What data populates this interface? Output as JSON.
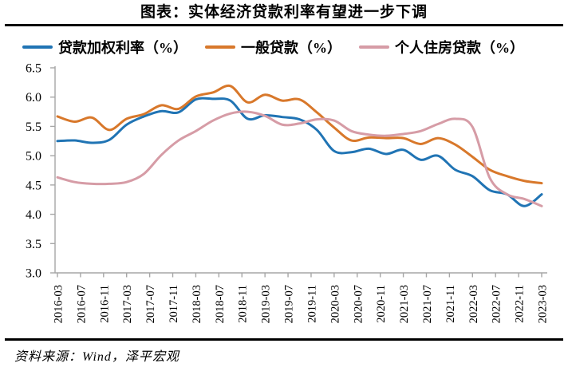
{
  "title": "图表：实体经济贷款利率有望进一步下调",
  "source_note": "资料来源：Wind，泽平宏观",
  "colors": {
    "series_blue": "#2074B4",
    "series_orange": "#D8782B",
    "series_pink": "#D69CA6",
    "axis": "#A6A6A6",
    "rule": "#000000",
    "text": "#000000"
  },
  "chart_data": {
    "type": "line",
    "title": "图表：实体经济贷款利率有望进一步下调",
    "xlabel": "",
    "ylabel": "",
    "ylim": [
      3.0,
      6.5
    ],
    "ytick_step": 0.5,
    "ytick_labels": [
      "6.5",
      "6.0",
      "5.5",
      "5.0",
      "4.5",
      "4.0",
      "3.5",
      "3.0"
    ],
    "xtick_labels": [
      "2016-03",
      "2016-07",
      "2016-11",
      "2017-03",
      "2017-07",
      "2017-11",
      "2018-03",
      "2018-07",
      "2018-11",
      "2019-03",
      "2019-07",
      "2019-11",
      "2020-03",
      "2020-07",
      "2020-11",
      "2021-03",
      "2021-07",
      "2021-11",
      "2022-03",
      "2022-07",
      "2022-11",
      "2023-03"
    ],
    "grid": false,
    "legend_position": "top-left",
    "x": [
      "2016-03",
      "2016-06",
      "2016-09",
      "2016-12",
      "2017-03",
      "2017-06",
      "2017-09",
      "2017-12",
      "2018-03",
      "2018-06",
      "2018-09",
      "2018-12",
      "2019-03",
      "2019-06",
      "2019-09",
      "2019-12",
      "2020-03",
      "2020-06",
      "2020-09",
      "2020-12",
      "2021-03",
      "2021-06",
      "2021-09",
      "2021-12",
      "2022-03",
      "2022-06",
      "2022-09",
      "2022-12",
      "2023-03"
    ],
    "series": [
      {
        "name": "贷款加权利率（%）",
        "color": "#2074B4",
        "values": [
          5.25,
          5.26,
          5.22,
          5.27,
          5.53,
          5.67,
          5.76,
          5.74,
          5.96,
          5.97,
          5.94,
          5.63,
          5.69,
          5.66,
          5.62,
          5.44,
          5.08,
          5.06,
          5.12,
          5.03,
          5.1,
          4.93,
          5.0,
          4.76,
          4.65,
          4.41,
          4.34,
          4.14,
          4.34
        ]
      },
      {
        "name": "一般贷款（%）",
        "color": "#D8782B",
        "values": [
          5.67,
          5.58,
          5.65,
          5.44,
          5.63,
          5.71,
          5.86,
          5.8,
          6.01,
          6.08,
          6.19,
          5.91,
          6.04,
          5.94,
          5.96,
          5.74,
          5.48,
          5.26,
          5.31,
          5.3,
          5.3,
          5.2,
          5.3,
          5.19,
          4.98,
          4.76,
          4.65,
          4.57,
          4.53
        ]
      },
      {
        "name": "个人住房贷款（%）",
        "color": "#D69CA6",
        "values": [
          4.63,
          4.55,
          4.52,
          4.52,
          4.55,
          4.69,
          5.01,
          5.26,
          5.42,
          5.6,
          5.72,
          5.75,
          5.68,
          5.53,
          5.55,
          5.62,
          5.6,
          5.42,
          5.36,
          5.34,
          5.37,
          5.42,
          5.54,
          5.63,
          5.49,
          4.62,
          4.34,
          4.26,
          4.14
        ]
      }
    ]
  }
}
